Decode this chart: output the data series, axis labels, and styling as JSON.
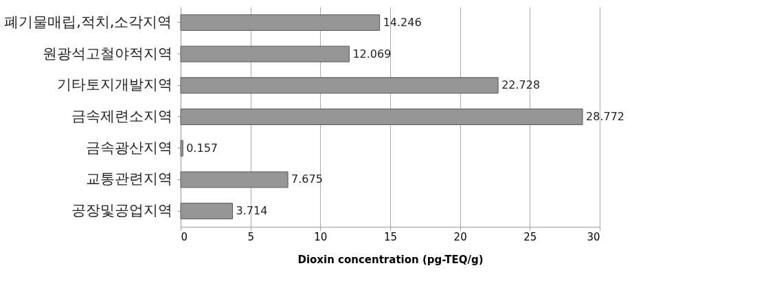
{
  "chart_data": {
    "type": "bar",
    "orientation": "horizontal",
    "xlabel": "Dioxin concentration (pg-TEQ/g)",
    "categories": [
      "폐기물매립,적치,소각지역",
      "원광석고철야적지역",
      "기타토지개발지역",
      "금속제련소지역",
      "금속광산지역",
      "교통관련지역",
      "공장및공업지역"
    ],
    "values": [
      14.246,
      12.069,
      22.728,
      28.772,
      0.157,
      7.675,
      3.714
    ],
    "color": "#969696",
    "xlim": [
      0,
      30
    ],
    "xticks": [
      0,
      5,
      10,
      15,
      20,
      25,
      30
    ],
    "grid": "x",
    "data_labels": true
  }
}
